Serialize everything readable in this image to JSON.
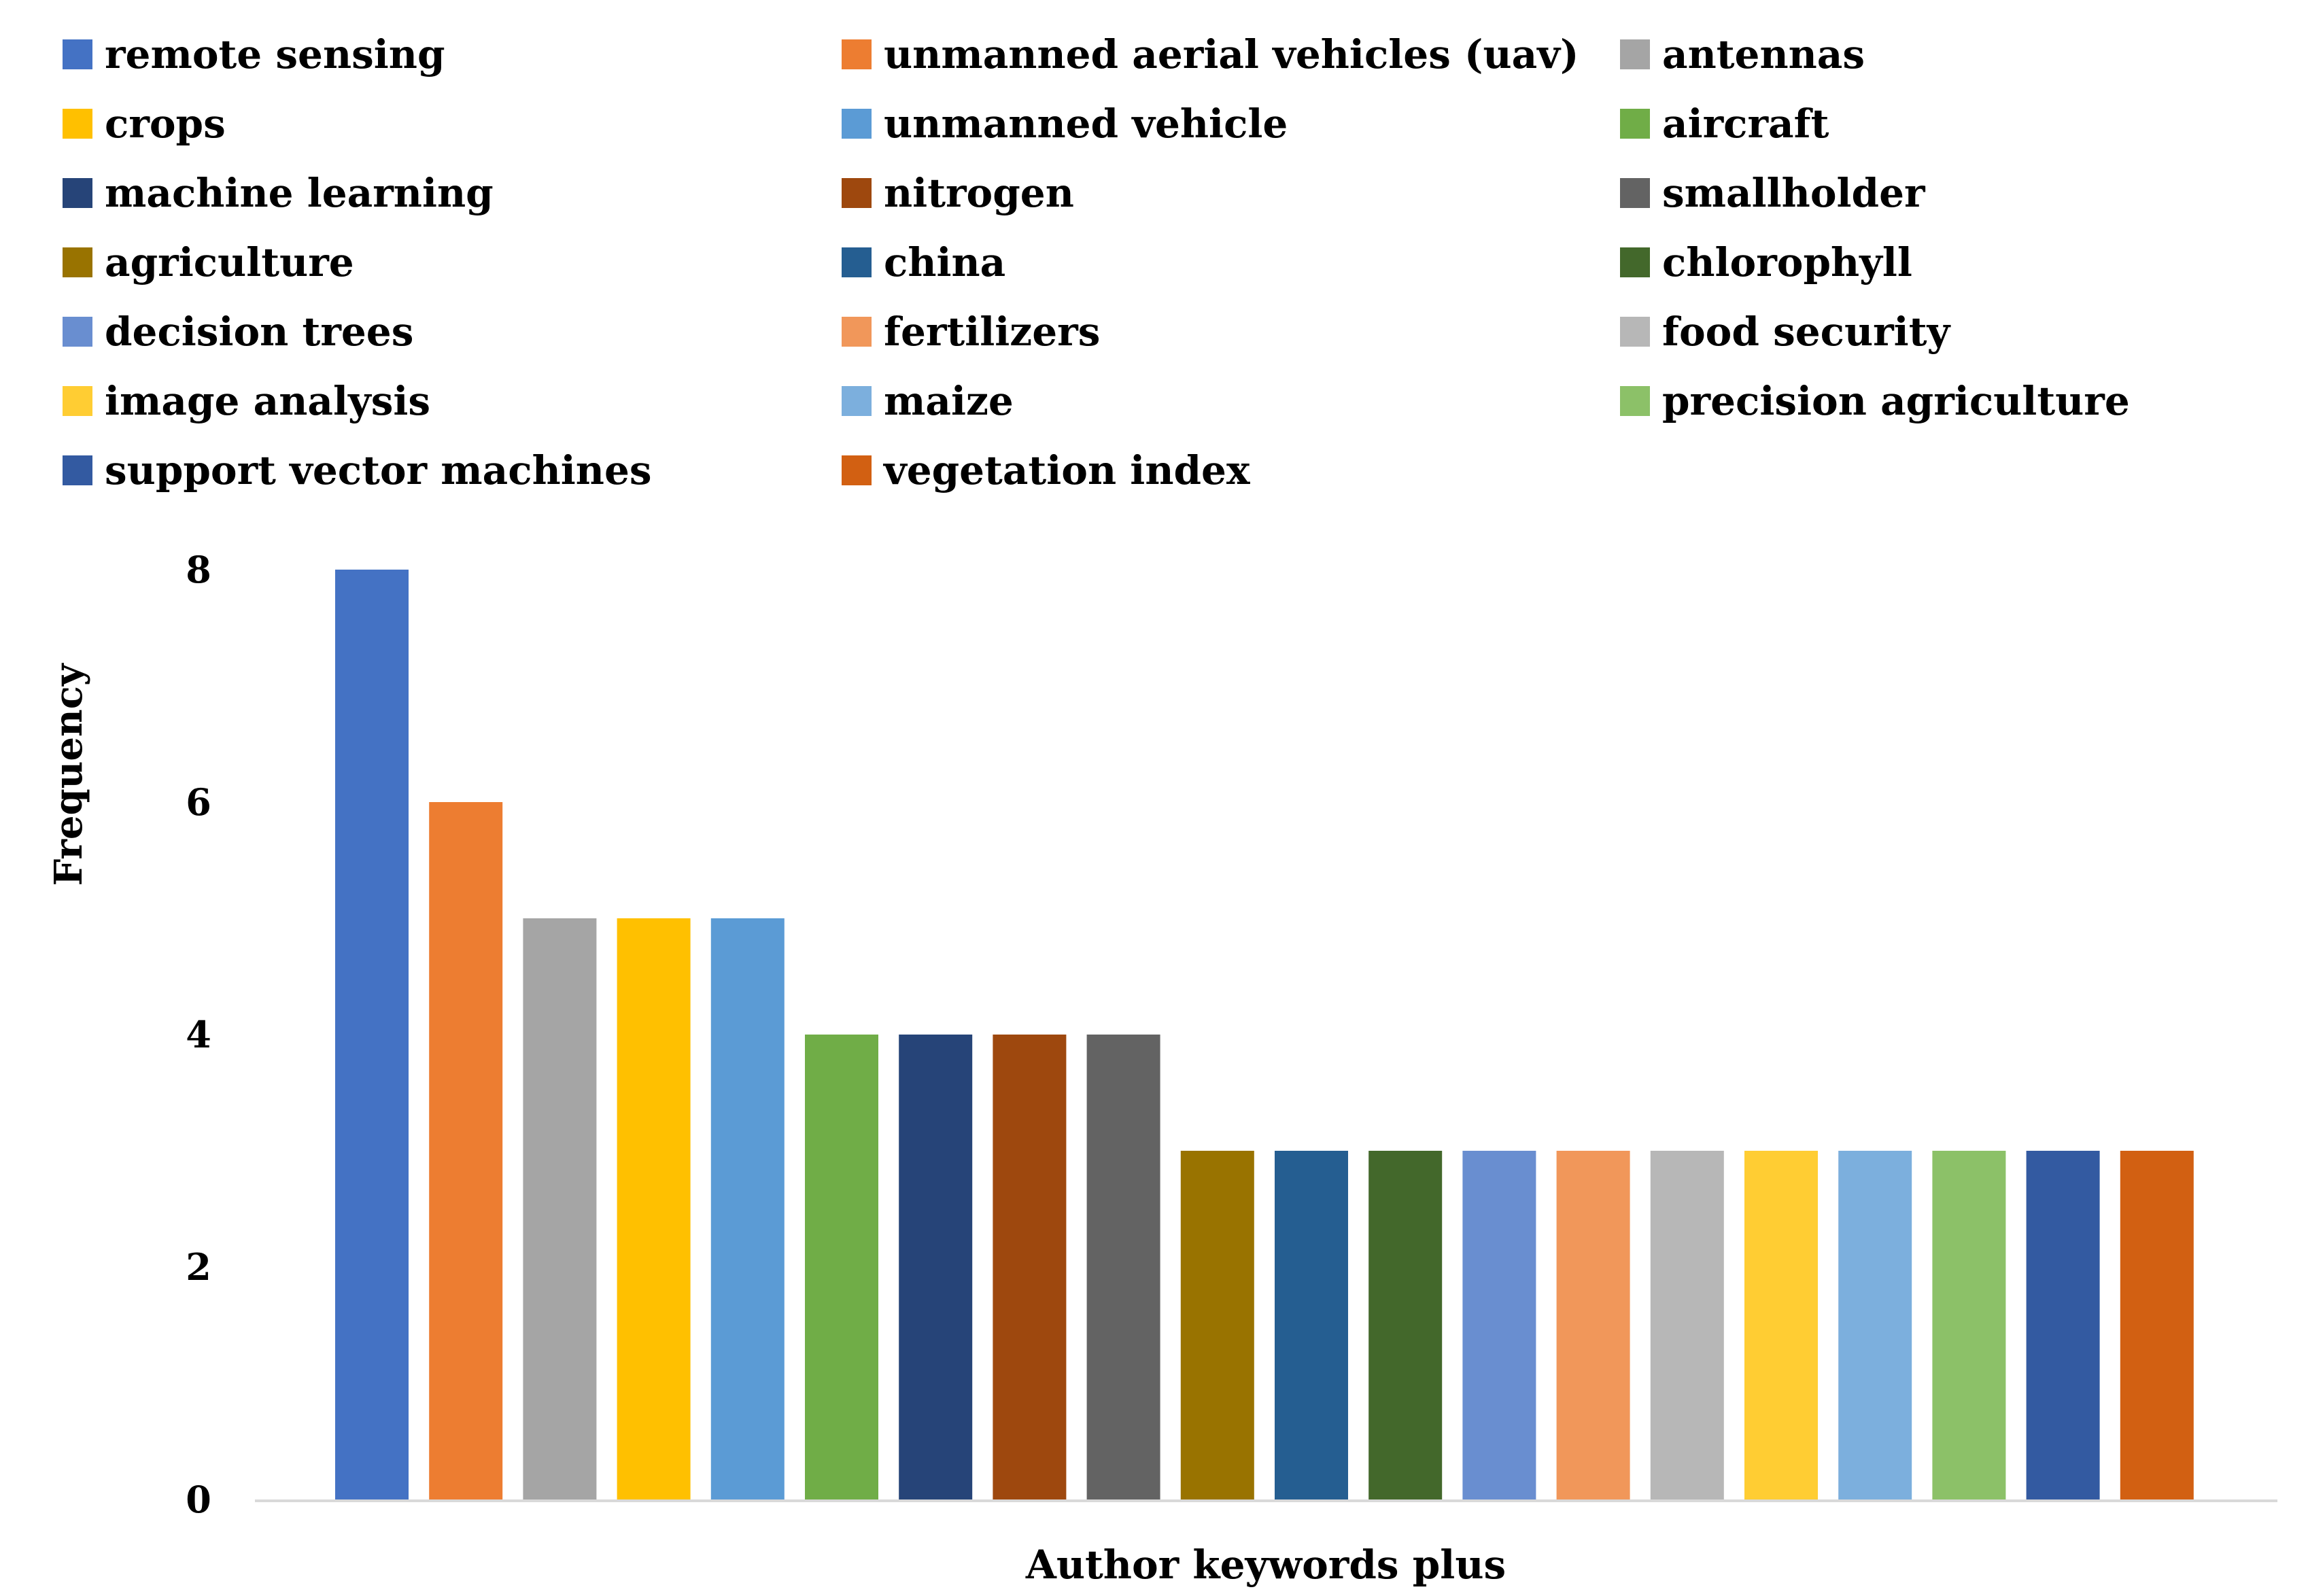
{
  "chart_data": {
    "type": "bar",
    "title": "",
    "xlabel": "Author keywords plus",
    "ylabel": "Frequency",
    "ylim": [
      0,
      8
    ],
    "yticks": [
      0,
      2,
      4,
      6,
      8
    ],
    "grid": false,
    "legend_position": "top",
    "legend_columns": 3,
    "categories": [
      "remote sensing",
      "unmanned aerial vehicles (uav)",
      "antennas",
      "crops",
      "unmanned vehicle",
      "aircraft",
      "machine learning",
      "nitrogen",
      "smallholder",
      "agriculture",
      "china",
      "chlorophyll",
      "decision trees",
      "fertilizers",
      "food security",
      "image analysis",
      "maize",
      "precision agriculture",
      "support vector machines",
      "vegetation index"
    ],
    "values": [
      8,
      6,
      5,
      5,
      5,
      4,
      4,
      4,
      4,
      3,
      3,
      3,
      3,
      3,
      3,
      3,
      3,
      3,
      3,
      3
    ],
    "colors": [
      "#4472C4",
      "#ED7D31",
      "#A5A5A5",
      "#FFC000",
      "#5B9BD5",
      "#70AD47",
      "#264478",
      "#9E480E",
      "#636363",
      "#997300",
      "#255E91",
      "#43682B",
      "#698ED0",
      "#F1975A",
      "#B7B7B7",
      "#FFCD33",
      "#7CAFDD",
      "#8CC168",
      "#335AA1",
      "#D26012"
    ]
  }
}
